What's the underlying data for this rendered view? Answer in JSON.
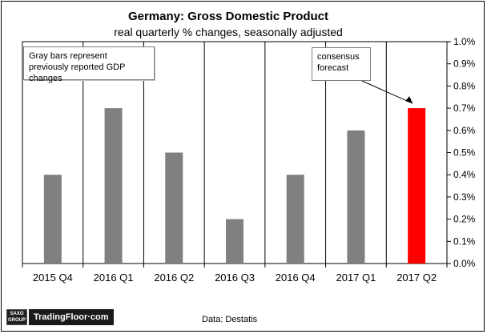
{
  "chart_data": {
    "type": "bar",
    "title": "Germany:  Gross Domestic Product",
    "subtitle": "real quarterly % changes, seasonally adjusted",
    "categories": [
      "2015 Q4",
      "2016 Q1",
      "2016 Q2",
      "2016 Q3",
      "2016 Q4",
      "2017 Q1",
      "2017 Q2"
    ],
    "series": [
      {
        "values": [
          0.4,
          0.7,
          0.5,
          0.2,
          0.4,
          0.6,
          0.7
        ],
        "colors": [
          "#808080",
          "#808080",
          "#808080",
          "#808080",
          "#808080",
          "#808080",
          "#ff0000"
        ]
      }
    ],
    "ylim": [
      0,
      1.0
    ],
    "yticks": [
      "0.0%",
      "0.1%",
      "0.2%",
      "0.3%",
      "0.4%",
      "0.5%",
      "0.6%",
      "0.7%",
      "0.8%",
      "0.9%",
      "1.0%"
    ],
    "y_axis_side": "right",
    "grid": "vertical category separators",
    "annotations": {
      "note": "Gray bars represent previously reported GDP changes",
      "consensus": "consensus forecast"
    }
  },
  "footer": {
    "logo_top": "SAXO",
    "logo_bottom": "GROUP",
    "brand": "TradingFloor·com",
    "source": "Data: Destatis"
  }
}
